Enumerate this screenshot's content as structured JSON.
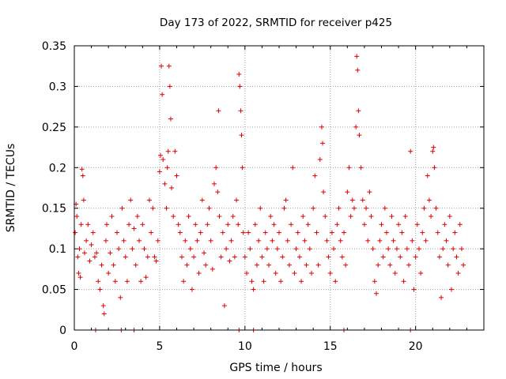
{
  "chart_data": {
    "type": "scatter",
    "title": "Day 173 of 2022, SRMTID for receiver p425",
    "xlabel": "GPS time / hours",
    "ylabel": "SRMTID / TECUs",
    "xlim": [
      0,
      24
    ],
    "ylim": [
      0,
      0.35
    ],
    "grid": true,
    "marker": "plus",
    "series_color": "#e00000",
    "xticks": [
      0,
      5,
      10,
      15,
      20
    ],
    "xtick_labels": [
      "0",
      "5",
      "10",
      "15",
      "20"
    ],
    "yticks": [
      0,
      0.05,
      0.1,
      0.15,
      0.2,
      0.25,
      0.3,
      0.35
    ],
    "ytick_labels": [
      "0",
      "0.05",
      "0.1",
      "0.15",
      "0.2",
      "0.25",
      "0.3",
      "0.35"
    ],
    "series": [
      {
        "name": "SRMTID",
        "points": [
          [
            0.05,
            0.12
          ],
          [
            0.1,
            0.155
          ],
          [
            0.15,
            0.14
          ],
          [
            0.2,
            0.09
          ],
          [
            0.25,
            0.07
          ],
          [
            0.3,
            0.1
          ],
          [
            0.35,
            0.065
          ],
          [
            0.4,
            0.13
          ],
          [
            0.45,
            0.198
          ],
          [
            0.5,
            0.19
          ],
          [
            0.55,
            0.16
          ],
          [
            0.6,
            0.095
          ],
          [
            0.7,
            0.11
          ],
          [
            0.8,
            0.13
          ],
          [
            0.9,
            0.085
          ],
          [
            1.0,
            0.105
          ],
          [
            1.1,
            0.12
          ],
          [
            1.2,
            0.09
          ],
          [
            1.3,
            0.095
          ],
          [
            1.4,
            0.06
          ],
          [
            1.5,
            0.05
          ],
          [
            1.6,
            0.08
          ],
          [
            1.7,
            0.03
          ],
          [
            1.75,
            0.02
          ],
          [
            1.85,
            0.11
          ],
          [
            1.9,
            0.13
          ],
          [
            2.0,
            0.07
          ],
          [
            2.1,
            0.095
          ],
          [
            2.2,
            0.14
          ],
          [
            2.3,
            0.08
          ],
          [
            2.4,
            0.06
          ],
          [
            2.5,
            0.12
          ],
          [
            2.6,
            0.1
          ],
          [
            2.7,
            0.04
          ],
          [
            2.8,
            0.15
          ],
          [
            2.9,
            0.11
          ],
          [
            3.0,
            0.09
          ],
          [
            3.1,
            0.06
          ],
          [
            3.2,
            0.13
          ],
          [
            3.3,
            0.16
          ],
          [
            3.4,
            0.1
          ],
          [
            3.5,
            0.125
          ],
          [
            3.6,
            0.08
          ],
          [
            3.7,
            0.14
          ],
          [
            3.8,
            0.11
          ],
          [
            3.9,
            0.06
          ],
          [
            4.0,
            0.13
          ],
          [
            4.1,
            0.1
          ],
          [
            4.2,
            0.065
          ],
          [
            4.3,
            0.09
          ],
          [
            4.4,
            0.16
          ],
          [
            4.5,
            0.12
          ],
          [
            4.6,
            0.15
          ],
          [
            4.7,
            0.09
          ],
          [
            4.8,
            0.085
          ],
          [
            4.9,
            0.11
          ],
          [
            5.0,
            0.195
          ],
          [
            5.05,
            0.215
          ],
          [
            5.1,
            0.325
          ],
          [
            5.15,
            0.29
          ],
          [
            5.2,
            0.21
          ],
          [
            5.3,
            0.18
          ],
          [
            5.4,
            0.15
          ],
          [
            5.45,
            0.2
          ],
          [
            5.5,
            0.22
          ],
          [
            5.55,
            0.325
          ],
          [
            5.6,
            0.3
          ],
          [
            5.65,
            0.26
          ],
          [
            5.7,
            0.175
          ],
          [
            5.8,
            0.14
          ],
          [
            5.9,
            0.22
          ],
          [
            6.0,
            0.19
          ],
          [
            6.1,
            0.13
          ],
          [
            6.2,
            0.12
          ],
          [
            6.3,
            0.09
          ],
          [
            6.4,
            0.06
          ],
          [
            6.5,
            0.11
          ],
          [
            6.6,
            0.08
          ],
          [
            6.7,
            0.14
          ],
          [
            6.8,
            0.1
          ],
          [
            6.9,
            0.05
          ],
          [
            7.0,
            0.09
          ],
          [
            7.1,
            0.13
          ],
          [
            7.2,
            0.11
          ],
          [
            7.3,
            0.07
          ],
          [
            7.4,
            0.12
          ],
          [
            7.5,
            0.16
          ],
          [
            7.6,
            0.095
          ],
          [
            7.7,
            0.08
          ],
          [
            7.8,
            0.13
          ],
          [
            7.9,
            0.15
          ],
          [
            8.0,
            0.11
          ],
          [
            8.1,
            0.075
          ],
          [
            8.2,
            0.18
          ],
          [
            8.3,
            0.2
          ],
          [
            8.4,
            0.17
          ],
          [
            8.45,
            0.27
          ],
          [
            8.5,
            0.14
          ],
          [
            8.6,
            0.09
          ],
          [
            8.7,
            0.12
          ],
          [
            8.8,
            0.03
          ],
          [
            8.9,
            0.1
          ],
          [
            9.0,
            0.13
          ],
          [
            9.1,
            0.085
          ],
          [
            9.2,
            0.11
          ],
          [
            9.3,
            0.14
          ],
          [
            9.4,
            0.09
          ],
          [
            9.5,
            0.16
          ],
          [
            9.6,
            0.13
          ],
          [
            9.65,
            0.315
          ],
          [
            9.7,
            0.3
          ],
          [
            9.75,
            0.27
          ],
          [
            9.8,
            0.24
          ],
          [
            9.85,
            0.2
          ],
          [
            9.9,
            0.12
          ],
          [
            10.0,
            0.09
          ],
          [
            10.1,
            0.07
          ],
          [
            10.2,
            0.12
          ],
          [
            10.3,
            0.1
          ],
          [
            10.4,
            0.06
          ],
          [
            10.5,
            0.05
          ],
          [
            10.6,
            0.13
          ],
          [
            10.7,
            0.08
          ],
          [
            10.8,
            0.11
          ],
          [
            10.9,
            0.15
          ],
          [
            11.0,
            0.09
          ],
          [
            11.1,
            0.06
          ],
          [
            11.2,
            0.12
          ],
          [
            11.3,
            0.1
          ],
          [
            11.4,
            0.08
          ],
          [
            11.5,
            0.14
          ],
          [
            11.6,
            0.11
          ],
          [
            11.7,
            0.13
          ],
          [
            11.8,
            0.07
          ],
          [
            11.9,
            0.1
          ],
          [
            12.0,
            0.12
          ],
          [
            12.1,
            0.06
          ],
          [
            12.2,
            0.09
          ],
          [
            12.3,
            0.15
          ],
          [
            12.4,
            0.16
          ],
          [
            12.5,
            0.11
          ],
          [
            12.6,
            0.08
          ],
          [
            12.7,
            0.13
          ],
          [
            12.8,
            0.2
          ],
          [
            12.9,
            0.07
          ],
          [
            13.0,
            0.1
          ],
          [
            13.1,
            0.12
          ],
          [
            13.2,
            0.09
          ],
          [
            13.3,
            0.06
          ],
          [
            13.4,
            0.14
          ],
          [
            13.5,
            0.11
          ],
          [
            13.6,
            0.08
          ],
          [
            13.7,
            0.13
          ],
          [
            13.8,
            0.1
          ],
          [
            13.9,
            0.07
          ],
          [
            14.0,
            0.15
          ],
          [
            14.1,
            0.19
          ],
          [
            14.2,
            0.12
          ],
          [
            14.3,
            0.08
          ],
          [
            14.4,
            0.21
          ],
          [
            14.5,
            0.25
          ],
          [
            14.55,
            0.23
          ],
          [
            14.6,
            0.17
          ],
          [
            14.7,
            0.14
          ],
          [
            14.8,
            0.11
          ],
          [
            14.9,
            0.09
          ],
          [
            15.0,
            0.07
          ],
          [
            15.1,
            0.12
          ],
          [
            15.2,
            0.1
          ],
          [
            15.3,
            0.06
          ],
          [
            15.4,
            0.13
          ],
          [
            15.5,
            0.15
          ],
          [
            15.6,
            0.11
          ],
          [
            15.7,
            0.09
          ],
          [
            15.8,
            0.12
          ],
          [
            15.9,
            0.08
          ],
          [
            16.0,
            0.17
          ],
          [
            16.1,
            0.2
          ],
          [
            16.2,
            0.14
          ],
          [
            16.3,
            0.16
          ],
          [
            16.4,
            0.15
          ],
          [
            16.5,
            0.25
          ],
          [
            16.55,
            0.337
          ],
          [
            16.6,
            0.32
          ],
          [
            16.65,
            0.27
          ],
          [
            16.7,
            0.24
          ],
          [
            16.8,
            0.2
          ],
          [
            16.9,
            0.16
          ],
          [
            17.0,
            0.13
          ],
          [
            17.1,
            0.15
          ],
          [
            17.2,
            0.11
          ],
          [
            17.3,
            0.17
          ],
          [
            17.4,
            0.14
          ],
          [
            17.5,
            0.1
          ],
          [
            17.6,
            0.06
          ],
          [
            17.7,
            0.045
          ],
          [
            17.8,
            0.08
          ],
          [
            17.9,
            0.11
          ],
          [
            18.0,
            0.13
          ],
          [
            18.1,
            0.09
          ],
          [
            18.2,
            0.15
          ],
          [
            18.3,
            0.12
          ],
          [
            18.4,
            0.1
          ],
          [
            18.5,
            0.08
          ],
          [
            18.6,
            0.14
          ],
          [
            18.7,
            0.11
          ],
          [
            18.8,
            0.07
          ],
          [
            18.9,
            0.1
          ],
          [
            19.0,
            0.13
          ],
          [
            19.1,
            0.09
          ],
          [
            19.2,
            0.12
          ],
          [
            19.3,
            0.06
          ],
          [
            19.4,
            0.14
          ],
          [
            19.5,
            0.1
          ],
          [
            19.6,
            0.08
          ],
          [
            19.7,
            0.22
          ],
          [
            19.8,
            0.11
          ],
          [
            19.9,
            0.05
          ],
          [
            20.0,
            0.09
          ],
          [
            20.1,
            0.13
          ],
          [
            20.2,
            0.1
          ],
          [
            20.3,
            0.07
          ],
          [
            20.4,
            0.12
          ],
          [
            20.5,
            0.15
          ],
          [
            20.6,
            0.11
          ],
          [
            20.7,
            0.19
          ],
          [
            20.8,
            0.16
          ],
          [
            20.9,
            0.14
          ],
          [
            21.0,
            0.22
          ],
          [
            21.05,
            0.225
          ],
          [
            21.1,
            0.2
          ],
          [
            21.2,
            0.15
          ],
          [
            21.3,
            0.12
          ],
          [
            21.4,
            0.09
          ],
          [
            21.5,
            0.04
          ],
          [
            21.6,
            0.1
          ],
          [
            21.7,
            0.13
          ],
          [
            21.8,
            0.11
          ],
          [
            21.9,
            0.08
          ],
          [
            22.0,
            0.14
          ],
          [
            22.1,
            0.05
          ],
          [
            22.2,
            0.1
          ],
          [
            22.3,
            0.12
          ],
          [
            22.4,
            0.09
          ],
          [
            22.5,
            0.07
          ],
          [
            22.6,
            0.13
          ],
          [
            22.7,
            0.1
          ],
          [
            22.8,
            0.08
          ],
          [
            1.25,
            0
          ],
          [
            2.75,
            0
          ],
          [
            3.5,
            0
          ],
          [
            9.65,
            0
          ],
          [
            10.5,
            0
          ],
          [
            15.8,
            0
          ],
          [
            19.7,
            0
          ]
        ]
      }
    ]
  }
}
